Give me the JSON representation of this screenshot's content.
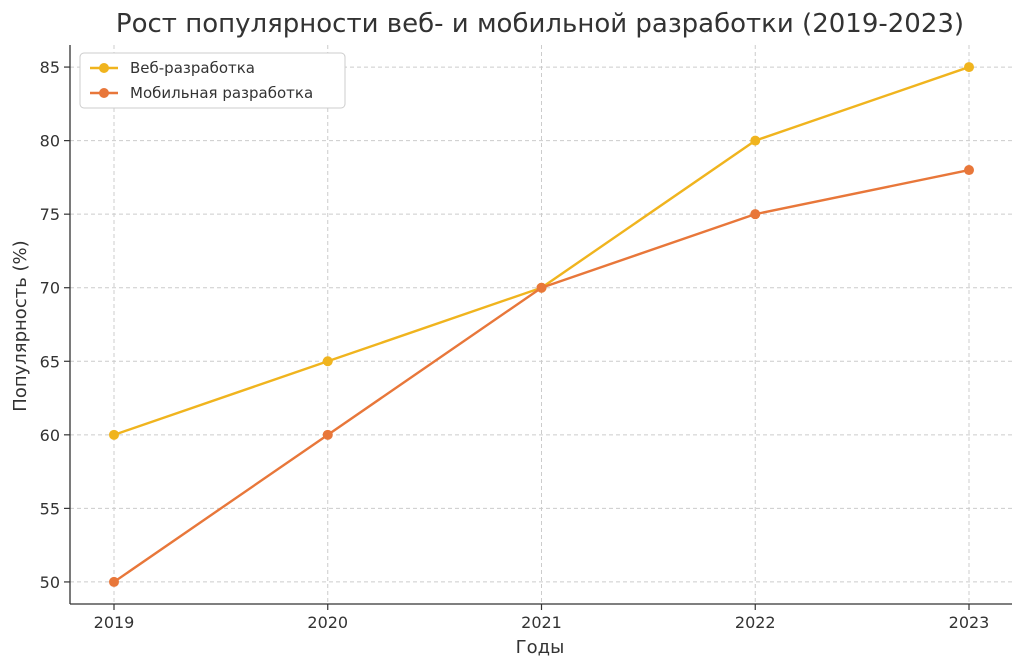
{
  "chart_data": {
    "type": "line",
    "title": "Рост популярности веб- и мобильной разработки (2019-2023)",
    "xlabel": "Годы",
    "ylabel": "Популярность (%)",
    "categories": [
      "2019",
      "2020",
      "2021",
      "2022",
      "2023"
    ],
    "ylim": [
      48.5,
      86.5
    ],
    "yticks": [
      50,
      55,
      60,
      65,
      70,
      75,
      80,
      85
    ],
    "grid": true,
    "legend_position": "top-left",
    "series": [
      {
        "name": "Веб-разработка",
        "color": "#F0B41E",
        "values": [
          60,
          65,
          70,
          80,
          85
        ]
      },
      {
        "name": "Мобильная разработка",
        "color": "#E8773A",
        "values": [
          50,
          60,
          70,
          75,
          78
        ]
      }
    ]
  }
}
